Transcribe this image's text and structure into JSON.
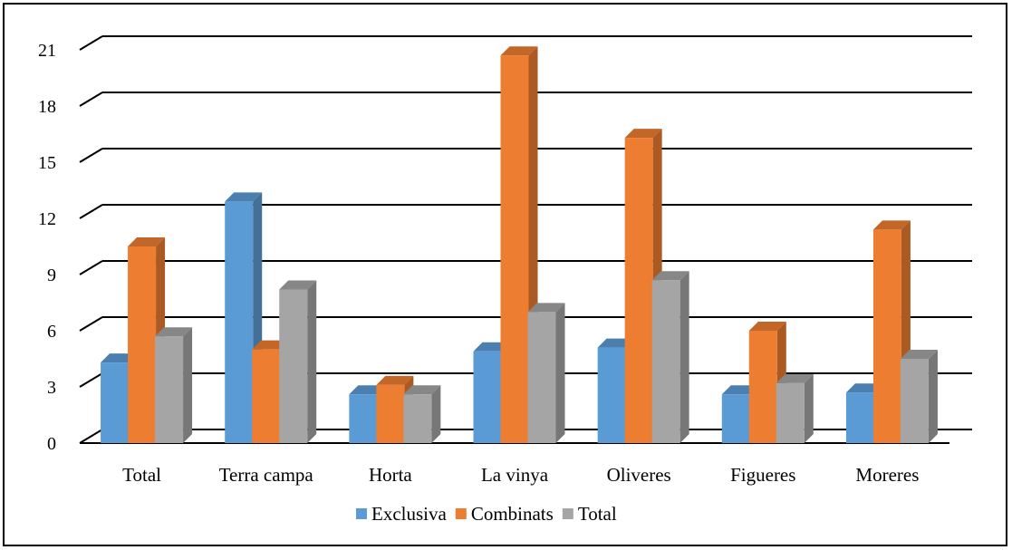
{
  "chart_data": {
    "type": "bar",
    "categories": [
      "Total",
      "Terra campa",
      "Horta",
      "La vinya",
      "Oliveres",
      "Figueres",
      "Moreres"
    ],
    "series": [
      {
        "name": "Exclusiva",
        "color": "#5b9bd5",
        "values": [
          4.3,
          12.9,
          2.6,
          4.9,
          5.1,
          2.6,
          2.7
        ]
      },
      {
        "name": "Combinats",
        "color": "#ed7d31",
        "values": [
          10.5,
          5.0,
          3.1,
          20.7,
          16.3,
          6.0,
          11.4
        ]
      },
      {
        "name": "Total",
        "color": "#a5a5a5",
        "values": [
          5.7,
          8.2,
          2.6,
          7.0,
          8.7,
          3.2,
          4.5
        ]
      }
    ],
    "y_ticks": [
      "0",
      "3",
      "6",
      "9",
      "12",
      "15",
      "18",
      "21"
    ],
    "ylim": [
      0,
      21
    ],
    "grid": true,
    "legend_position": "bottom",
    "style": "3d-clustered-column"
  }
}
